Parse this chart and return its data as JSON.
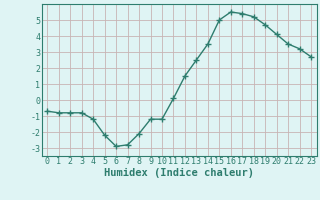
{
  "x": [
    0,
    1,
    2,
    3,
    4,
    5,
    6,
    7,
    8,
    9,
    10,
    11,
    12,
    13,
    14,
    15,
    16,
    17,
    18,
    19,
    20,
    21,
    22,
    23
  ],
  "y": [
    -0.7,
    -0.8,
    -0.8,
    -0.8,
    -1.2,
    -2.2,
    -2.9,
    -2.8,
    -2.1,
    -1.2,
    -1.2,
    0.1,
    1.5,
    2.5,
    3.5,
    5.0,
    5.5,
    5.4,
    5.2,
    4.7,
    4.1,
    3.5,
    3.2,
    2.7
  ],
  "line_color": "#2e7d6e",
  "marker": "+",
  "marker_size": 4,
  "bg_color": "#dff4f4",
  "grid_color": "#c8b4b4",
  "xlabel": "Humidex (Indice chaleur)",
  "xlim": [
    -0.5,
    23.5
  ],
  "ylim": [
    -3.5,
    6.0
  ],
  "yticks": [
    -3,
    -2,
    -1,
    0,
    1,
    2,
    3,
    4,
    5
  ],
  "xticks": [
    0,
    1,
    2,
    3,
    4,
    5,
    6,
    7,
    8,
    9,
    10,
    11,
    12,
    13,
    14,
    15,
    16,
    17,
    18,
    19,
    20,
    21,
    22,
    23
  ],
  "tick_fontsize": 6.0,
  "xlabel_fontsize": 7.5
}
